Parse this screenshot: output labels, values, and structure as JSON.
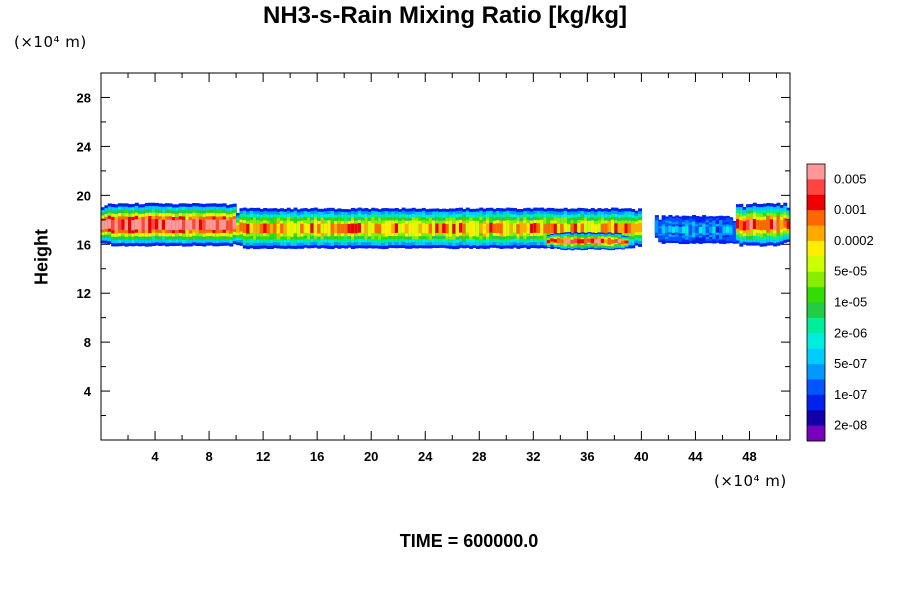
{
  "chart_data": {
    "type": "heatmap",
    "title": "NH3-s-Rain Mixing Ratio [kg/kg]",
    "ylabel": "Height",
    "xlabel": "",
    "x_unit": "(×10⁴ m)",
    "y_unit": "(×10⁴ m)",
    "xlim": [
      0,
      51
    ],
    "ylim": [
      0,
      30
    ],
    "x_ticks": [
      4,
      8,
      12,
      16,
      20,
      24,
      28,
      32,
      36,
      40,
      44,
      48
    ],
    "y_ticks": [
      4,
      8,
      12,
      16,
      20,
      24,
      28
    ],
    "time_label": "TIME = 600000.0",
    "colorbar": {
      "labels": [
        "0.005",
        "0.001",
        "0.0002",
        "5e-05",
        "1e-05",
        "2e-06",
        "5e-07",
        "1e-07",
        "2e-08"
      ],
      "colors_top_to_bottom": [
        "#ff9999",
        "#ff4444",
        "#ee0000",
        "#ff6600",
        "#ffaa00",
        "#ffee00",
        "#ccff00",
        "#88ee00",
        "#33dd00",
        "#22cc44",
        "#00ee99",
        "#00eedd",
        "#00ccff",
        "#0099ff",
        "#0055ff",
        "#0022ee",
        "#1100aa",
        "#7700bb"
      ]
    },
    "mixing_layer": {
      "description_levels": "concentration band between heights ~15.5 and ~19.5",
      "segments": [
        {
          "x_start": 0,
          "x_end": 10,
          "y_bottom": 15.8,
          "y_top": 19.4,
          "peak": 0.005
        },
        {
          "x_start": 10,
          "x_end": 40,
          "y_bottom": 15.6,
          "y_top": 19.0,
          "peak": 0.0002
        },
        {
          "x_start": 33,
          "x_end": 39,
          "y_bottom": 15.5,
          "y_top": 17.0,
          "peak": 0.001
        },
        {
          "x_start": 41,
          "x_end": 47,
          "y_bottom": 16.0,
          "y_top": 18.4,
          "peak": 1e-07
        },
        {
          "x_start": 47,
          "x_end": 51,
          "y_bottom": 15.8,
          "y_top": 19.4,
          "peak": 0.001
        }
      ]
    }
  }
}
